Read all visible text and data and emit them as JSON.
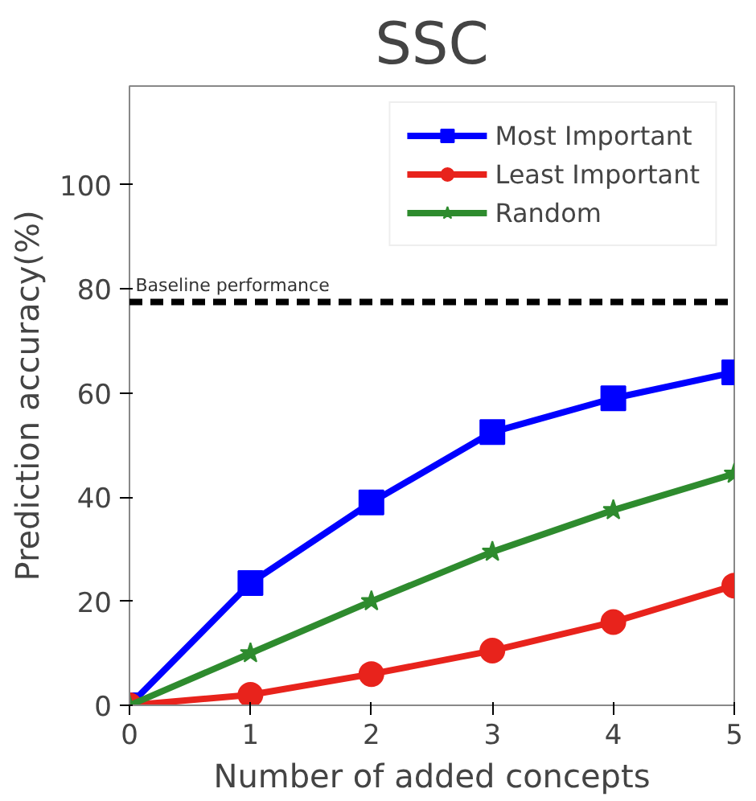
{
  "chart_data": {
    "type": "line",
    "title": "SSC",
    "xlabel": "Number of added concepts",
    "ylabel": "Prediction accuracy(%)",
    "x": [
      0,
      1,
      2,
      3,
      4,
      5
    ],
    "xlim": [
      0,
      5
    ],
    "xticks": [
      0,
      1,
      2,
      3,
      4,
      5
    ],
    "ylim": [
      0,
      119
    ],
    "yticks": [
      0,
      20,
      40,
      60,
      80,
      100
    ],
    "series": [
      {
        "name": "Most Important",
        "color": "#0000ff",
        "marker": "square",
        "values": [
          0,
          23.5,
          39,
          52.5,
          59,
          64
        ]
      },
      {
        "name": "Least Important",
        "color": "#e8231c",
        "marker": "circle",
        "values": [
          0,
          2,
          6,
          10.5,
          16,
          23
        ]
      },
      {
        "name": "Random",
        "color": "#2e8b2e",
        "marker": "star",
        "values": [
          0,
          10,
          20,
          29.5,
          37.5,
          44.5
        ]
      }
    ],
    "ref_lines": [
      {
        "axis": "y",
        "value": 77.5,
        "label": "Baseline performance",
        "color": "#000000",
        "line_style": "dashed"
      }
    ],
    "grid": false,
    "legend": "top right",
    "line_style": "solid"
  }
}
